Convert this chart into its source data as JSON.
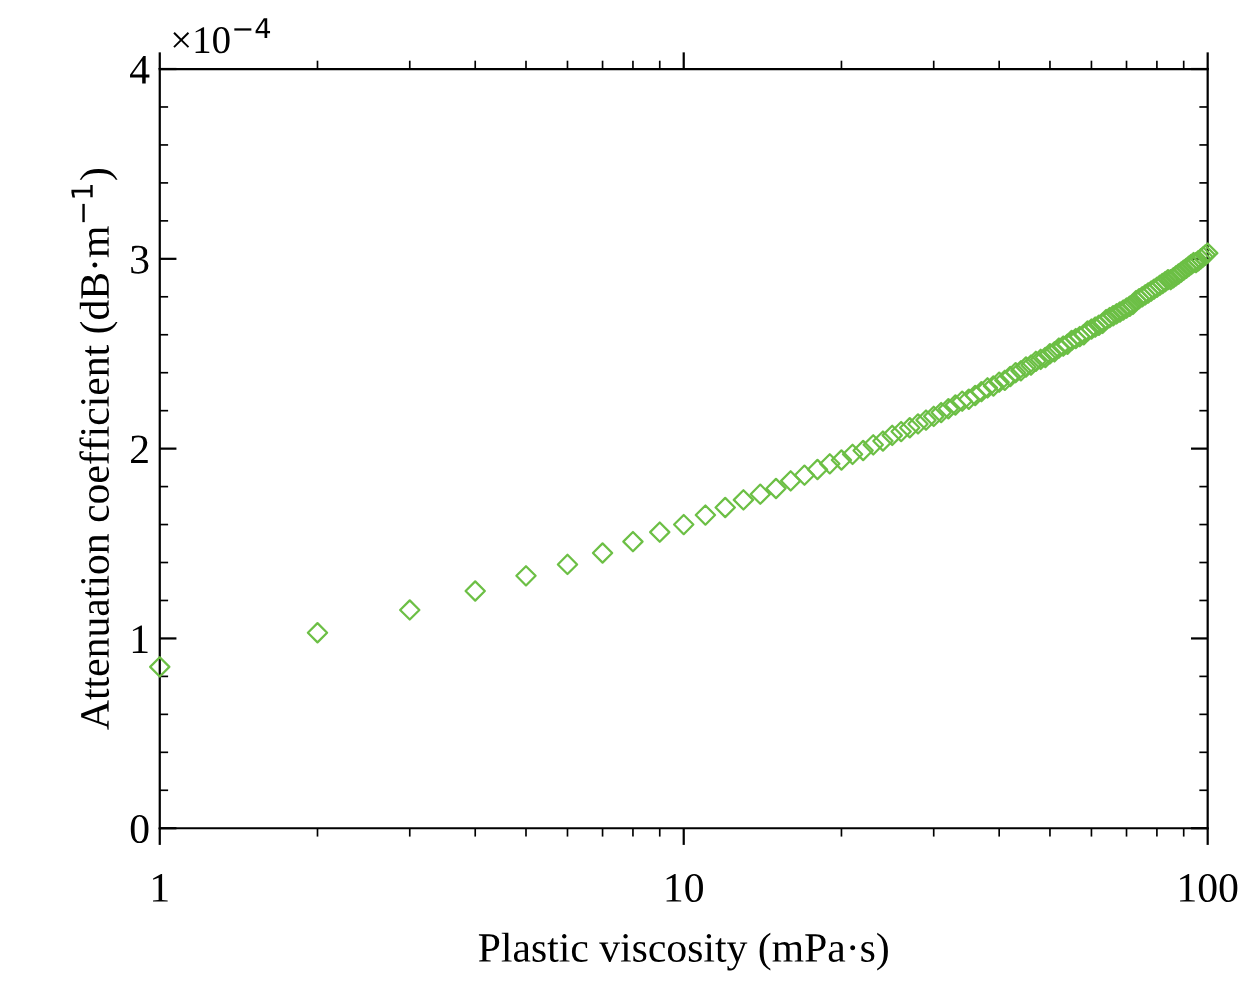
{
  "chart_data": {
    "type": "scatter",
    "xlabel": "Plastic viscosity (mPa·s)",
    "ylabel": "Attenuation coefficient (dB·m$^{−1}$)",
    "annotations": [
      "×10$^{−4}$"
    ],
    "log": "x",
    "xlim": [
      1,
      100
    ],
    "xticks": [
      1,
      10,
      100
    ],
    "ylim": [
      0,
      4
    ],
    "yticks": [
      0,
      1,
      2,
      3,
      4
    ],
    "grid": false,
    "legend": false,
    "marker": "diamond",
    "x": [
      1,
      2,
      3,
      4,
      5,
      6,
      7,
      8,
      9,
      10,
      11,
      12,
      13,
      14,
      15,
      16,
      17,
      18,
      19,
      20,
      21,
      22,
      23,
      24,
      25,
      26,
      27,
      28,
      29,
      30,
      31,
      32,
      33,
      34,
      35,
      36,
      37,
      38,
      39,
      40,
      41,
      42,
      43,
      44,
      45,
      46,
      47,
      48,
      49,
      50,
      51,
      52,
      53,
      54,
      55,
      56,
      57,
      58,
      59,
      60,
      61,
      62,
      63,
      64,
      65,
      66,
      67,
      68,
      69,
      70,
      71,
      72,
      73,
      74,
      75,
      76,
      77,
      78,
      79,
      80,
      81,
      82,
      83,
      84,
      85,
      86,
      87,
      88,
      89,
      90,
      91,
      92,
      93,
      94,
      95,
      96,
      97,
      98,
      99,
      100
    ],
    "series": [
      {
        "color": "#6cbf45",
        "values": [
          0.85,
          1.03,
          1.15,
          1.25,
          1.33,
          1.39,
          1.45,
          1.51,
          1.56,
          1.6,
          1.65,
          1.69,
          1.73,
          1.76,
          1.79,
          1.83,
          1.86,
          1.89,
          1.92,
          1.94,
          1.97,
          1.99,
          2.02,
          2.04,
          2.07,
          2.09,
          2.11,
          2.13,
          2.15,
          2.17,
          2.19,
          2.21,
          2.23,
          2.25,
          2.26,
          2.28,
          2.3,
          2.32,
          2.33,
          2.35,
          2.36,
          2.38,
          2.4,
          2.41,
          2.43,
          2.44,
          2.46,
          2.47,
          2.48,
          2.5,
          2.51,
          2.53,
          2.54,
          2.55,
          2.57,
          2.58,
          2.59,
          2.6,
          2.62,
          2.63,
          2.64,
          2.65,
          2.66,
          2.68,
          2.69,
          2.7,
          2.71,
          2.72,
          2.73,
          2.74,
          2.75,
          2.76,
          2.78,
          2.79,
          2.8,
          2.81,
          2.82,
          2.83,
          2.84,
          2.85,
          2.86,
          2.87,
          2.88,
          2.89,
          2.89,
          2.9,
          2.91,
          2.92,
          2.93,
          2.94,
          2.95,
          2.96,
          2.97,
          2.98,
          2.98,
          2.99,
          3.0,
          3.01,
          3.02,
          3.03
        ]
      }
    ]
  }
}
